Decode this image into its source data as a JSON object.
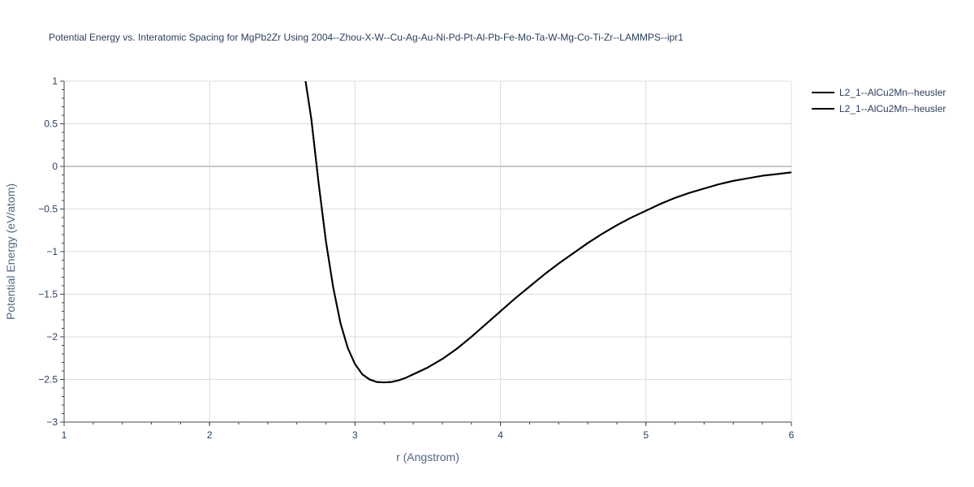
{
  "chart_data": {
    "type": "line",
    "title": "Potential Energy vs. Interatomic Spacing for MgPb2Zr Using 2004--Zhou-X-W--Cu-Ag-Au-Ni-Pd-Pt-Al-Pb-Fe-Mo-Ta-W-Mg-Co-Ti-Zr--LAMMPS--ipr1",
    "xlabel": "r (Angstrom)",
    "ylabel": "Potential Energy (eV/atom)",
    "xlim": [
      1,
      6
    ],
    "ylim": [
      -3,
      1
    ],
    "x_ticks": [
      1,
      2,
      3,
      4,
      5,
      6
    ],
    "x_tick_labels": [
      "1",
      "2",
      "3",
      "4",
      "5",
      "6"
    ],
    "y_ticks": [
      -3,
      -2.5,
      -2,
      -1.5,
      -1,
      -0.5,
      0,
      0.5,
      1
    ],
    "y_tick_labels": [
      "−3",
      "−2.5",
      "−2",
      "−1.5",
      "−1",
      "−0.5",
      "0",
      "0.5",
      "1"
    ],
    "grid": true,
    "legend_position": "top-right",
    "series": [
      {
        "name": "L2_1--AlCu2Mn--heusler",
        "color": "#000000",
        "x": [
          2.66,
          2.7,
          2.75,
          2.8,
          2.85,
          2.9,
          2.95,
          3.0,
          3.05,
          3.1,
          3.15,
          3.2,
          3.25,
          3.3,
          3.35,
          3.4,
          3.5,
          3.6,
          3.7,
          3.8,
          3.9,
          4.0,
          4.1,
          4.2,
          4.3,
          4.4,
          4.5,
          4.6,
          4.7,
          4.8,
          4.9,
          5.0,
          5.1,
          5.2,
          5.3,
          5.4,
          5.5,
          5.6,
          5.7,
          5.8,
          5.9,
          6.0
        ],
        "y": [
          1.0,
          0.55,
          -0.2,
          -0.88,
          -1.42,
          -1.84,
          -2.13,
          -2.32,
          -2.44,
          -2.5,
          -2.53,
          -2.535,
          -2.53,
          -2.51,
          -2.48,
          -2.44,
          -2.36,
          -2.26,
          -2.14,
          -2.0,
          -1.85,
          -1.7,
          -1.55,
          -1.41,
          -1.27,
          -1.14,
          -1.02,
          -0.9,
          -0.79,
          -0.69,
          -0.6,
          -0.52,
          -0.44,
          -0.37,
          -0.31,
          -0.26,
          -0.21,
          -0.17,
          -0.14,
          -0.11,
          -0.09,
          -0.07
        ]
      },
      {
        "name": "L2_1--AlCu2Mn--heusler",
        "color": "#000000",
        "x": [
          2.66,
          2.7,
          2.75,
          2.8,
          2.85,
          2.9,
          2.95,
          3.0,
          3.05,
          3.1,
          3.15,
          3.2,
          3.25,
          3.3,
          3.35,
          3.4,
          3.5,
          3.6,
          3.7,
          3.8,
          3.9,
          4.0,
          4.1,
          4.2,
          4.3,
          4.4,
          4.5,
          4.6,
          4.7,
          4.8,
          4.9,
          5.0,
          5.1,
          5.2,
          5.3,
          5.4,
          5.5,
          5.6,
          5.7,
          5.8,
          5.9,
          6.0
        ],
        "y": [
          1.0,
          0.55,
          -0.2,
          -0.88,
          -1.42,
          -1.84,
          -2.13,
          -2.32,
          -2.44,
          -2.5,
          -2.53,
          -2.535,
          -2.53,
          -2.51,
          -2.48,
          -2.44,
          -2.36,
          -2.26,
          -2.14,
          -2.0,
          -1.85,
          -1.7,
          -1.55,
          -1.41,
          -1.27,
          -1.14,
          -1.02,
          -0.9,
          -0.79,
          -0.69,
          -0.6,
          -0.52,
          -0.44,
          -0.37,
          -0.31,
          -0.26,
          -0.21,
          -0.17,
          -0.14,
          -0.11,
          -0.09,
          -0.07
        ]
      }
    ]
  }
}
